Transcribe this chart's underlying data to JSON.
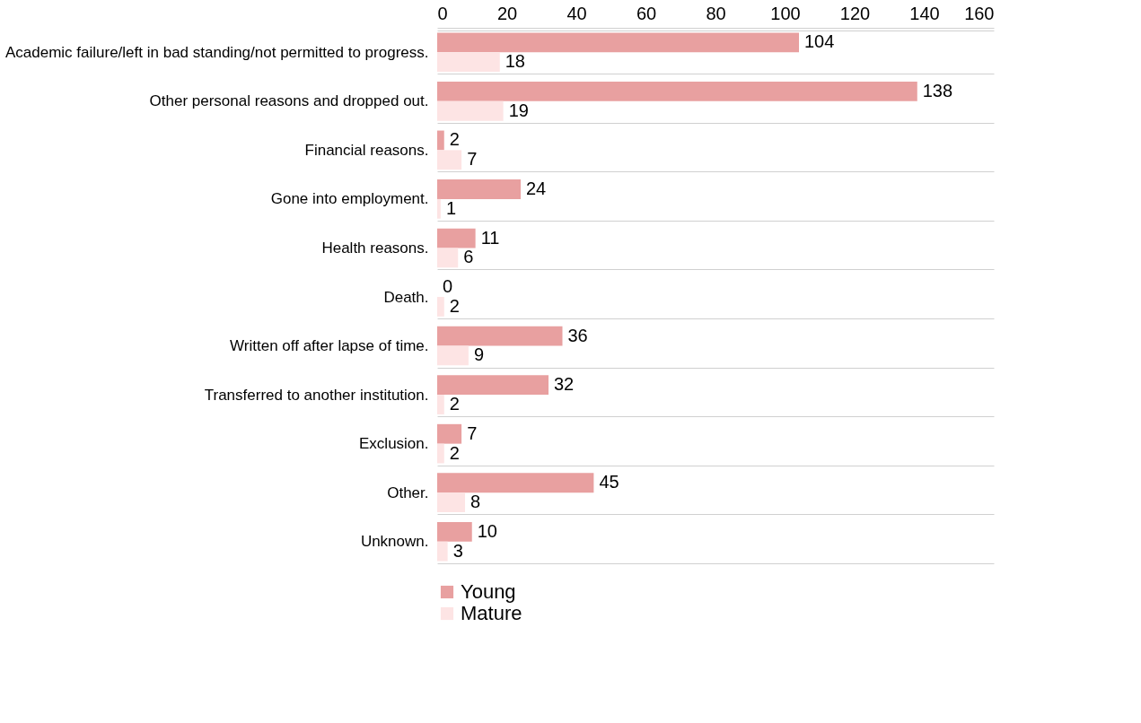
{
  "chart_data": {
    "type": "bar",
    "orientation": "horizontal",
    "categories": [
      "Academic failure/left in bad standing/not permitted to progress.",
      "Other personal reasons and dropped out.",
      "Financial reasons.",
      "Gone into employment.",
      "Health reasons.",
      "Death.",
      "Written off after lapse of time.",
      "Transferred to another institution.",
      "Exclusion.",
      "Other.",
      "Unknown."
    ],
    "series": [
      {
        "name": "Young",
        "color": "#e8a0a0",
        "values": [
          104,
          138,
          2,
          24,
          11,
          0,
          36,
          32,
          7,
          45,
          10
        ]
      },
      {
        "name": "Mature",
        "color": "#fde4e4",
        "values": [
          18,
          19,
          7,
          1,
          6,
          2,
          9,
          2,
          2,
          8,
          3
        ]
      }
    ],
    "xlim": [
      0,
      160
    ],
    "xticks": [
      0,
      20,
      40,
      60,
      80,
      100,
      120,
      140,
      160
    ],
    "data_labels": true,
    "grid": false,
    "legend": "bottom left"
  }
}
